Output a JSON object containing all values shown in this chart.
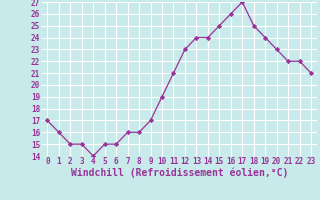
{
  "x": [
    0,
    1,
    2,
    3,
    4,
    5,
    6,
    7,
    8,
    9,
    10,
    11,
    12,
    13,
    14,
    15,
    16,
    17,
    18,
    19,
    20,
    21,
    22,
    23
  ],
  "y": [
    17,
    16,
    15,
    15,
    14,
    15,
    15,
    16,
    16,
    17,
    19,
    21,
    23,
    24,
    24,
    25,
    26,
    27,
    25,
    24,
    23,
    22,
    22,
    21
  ],
  "line_color": "#993399",
  "marker": "D",
  "marker_size": 2.2,
  "linewidth": 0.9,
  "xlabel": "Windchill (Refroidissement éolien,°C)",
  "ylim": [
    14,
    27
  ],
  "xlim": [
    -0.5,
    23.5
  ],
  "yticks": [
    14,
    15,
    16,
    17,
    18,
    19,
    20,
    21,
    22,
    23,
    24,
    25,
    26,
    27
  ],
  "xticks": [
    0,
    1,
    2,
    3,
    4,
    5,
    6,
    7,
    8,
    9,
    10,
    11,
    12,
    13,
    14,
    15,
    16,
    17,
    18,
    19,
    20,
    21,
    22,
    23
  ],
  "background_color": "#c8eaea",
  "grid_color": "#ffffff",
  "tick_color": "#993399",
  "label_color": "#993399",
  "ytick_fontsize": 5.5,
  "xtick_fontsize": 5.5,
  "xlabel_fontsize": 7.0
}
